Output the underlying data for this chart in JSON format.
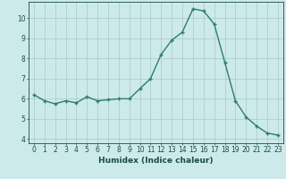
{
  "x": [
    0,
    1,
    2,
    3,
    4,
    5,
    6,
    7,
    8,
    9,
    10,
    11,
    12,
    13,
    14,
    15,
    16,
    17,
    18,
    19,
    20,
    21,
    22,
    23
  ],
  "y": [
    6.2,
    5.9,
    5.75,
    5.9,
    5.8,
    6.1,
    5.9,
    5.95,
    6.0,
    6.0,
    6.5,
    7.0,
    8.2,
    8.9,
    9.3,
    10.45,
    10.35,
    9.7,
    7.8,
    5.9,
    5.1,
    4.65,
    4.3,
    4.2
  ],
  "line_color": "#2e7d6e",
  "marker": "+",
  "markersize": 3.5,
  "linewidth": 1.0,
  "xlabel": "Humidex (Indice chaleur)",
  "xlim": [
    -0.5,
    23.5
  ],
  "ylim": [
    3.8,
    10.8
  ],
  "yticks": [
    4,
    5,
    6,
    7,
    8,
    9,
    10
  ],
  "xticks": [
    0,
    1,
    2,
    3,
    4,
    5,
    6,
    7,
    8,
    9,
    10,
    11,
    12,
    13,
    14,
    15,
    16,
    17,
    18,
    19,
    20,
    21,
    22,
    23
  ],
  "bg_color": "#cdeaea",
  "grid_color": "#aac8c8",
  "font_color": "#1a4a4a",
  "tick_fontsize": 5.5,
  "label_fontsize": 6.5
}
